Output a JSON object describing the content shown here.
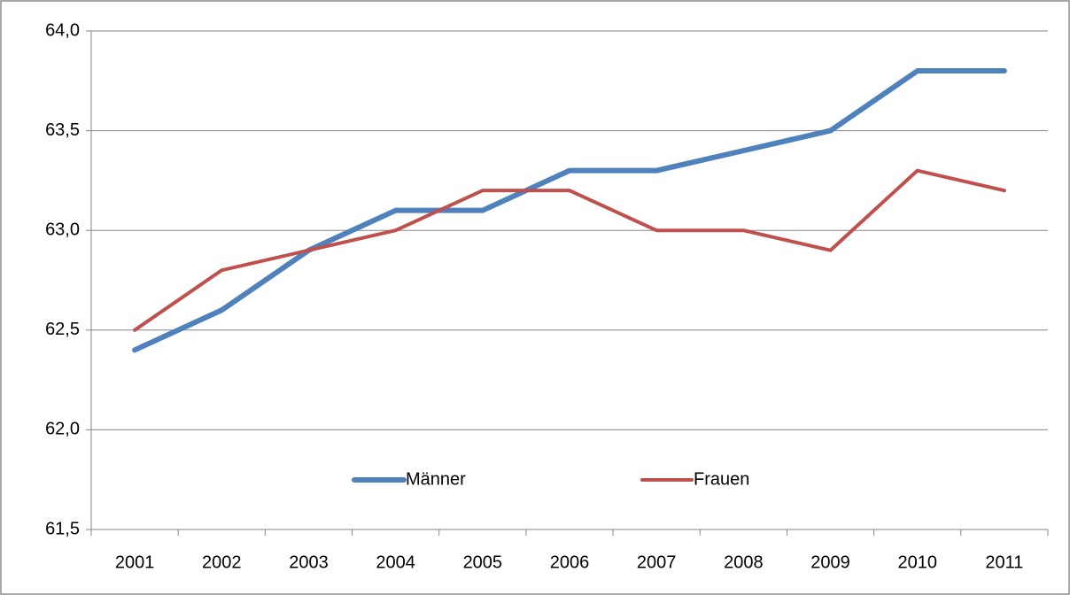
{
  "chart_data": {
    "type": "line",
    "categories": [
      "2001",
      "2002",
      "2003",
      "2004",
      "2005",
      "2006",
      "2007",
      "2008",
      "2009",
      "2010",
      "2011"
    ],
    "series": [
      {
        "name": "Männer",
        "color": "#4f81bd",
        "values": [
          62.4,
          62.6,
          62.9,
          63.1,
          63.1,
          63.3,
          63.3,
          63.4,
          63.5,
          63.8,
          63.8
        ]
      },
      {
        "name": "Frauen",
        "color": "#c0504d",
        "values": [
          62.5,
          62.8,
          62.9,
          63.0,
          63.2,
          63.2,
          63.0,
          63.0,
          62.9,
          63.3,
          63.2
        ]
      }
    ],
    "ylim": [
      61.5,
      64
    ],
    "yticks": [
      {
        "value": 61.5,
        "label": "61,5"
      },
      {
        "value": 62,
        "label": "62,0"
      },
      {
        "value": 62.5,
        "label": "62,5"
      },
      {
        "value": 63,
        "label": "63,0"
      },
      {
        "value": 63.5,
        "label": "63,5"
      },
      {
        "value": 64,
        "label": "64,0"
      }
    ],
    "grid": true,
    "legend": "bottom"
  }
}
